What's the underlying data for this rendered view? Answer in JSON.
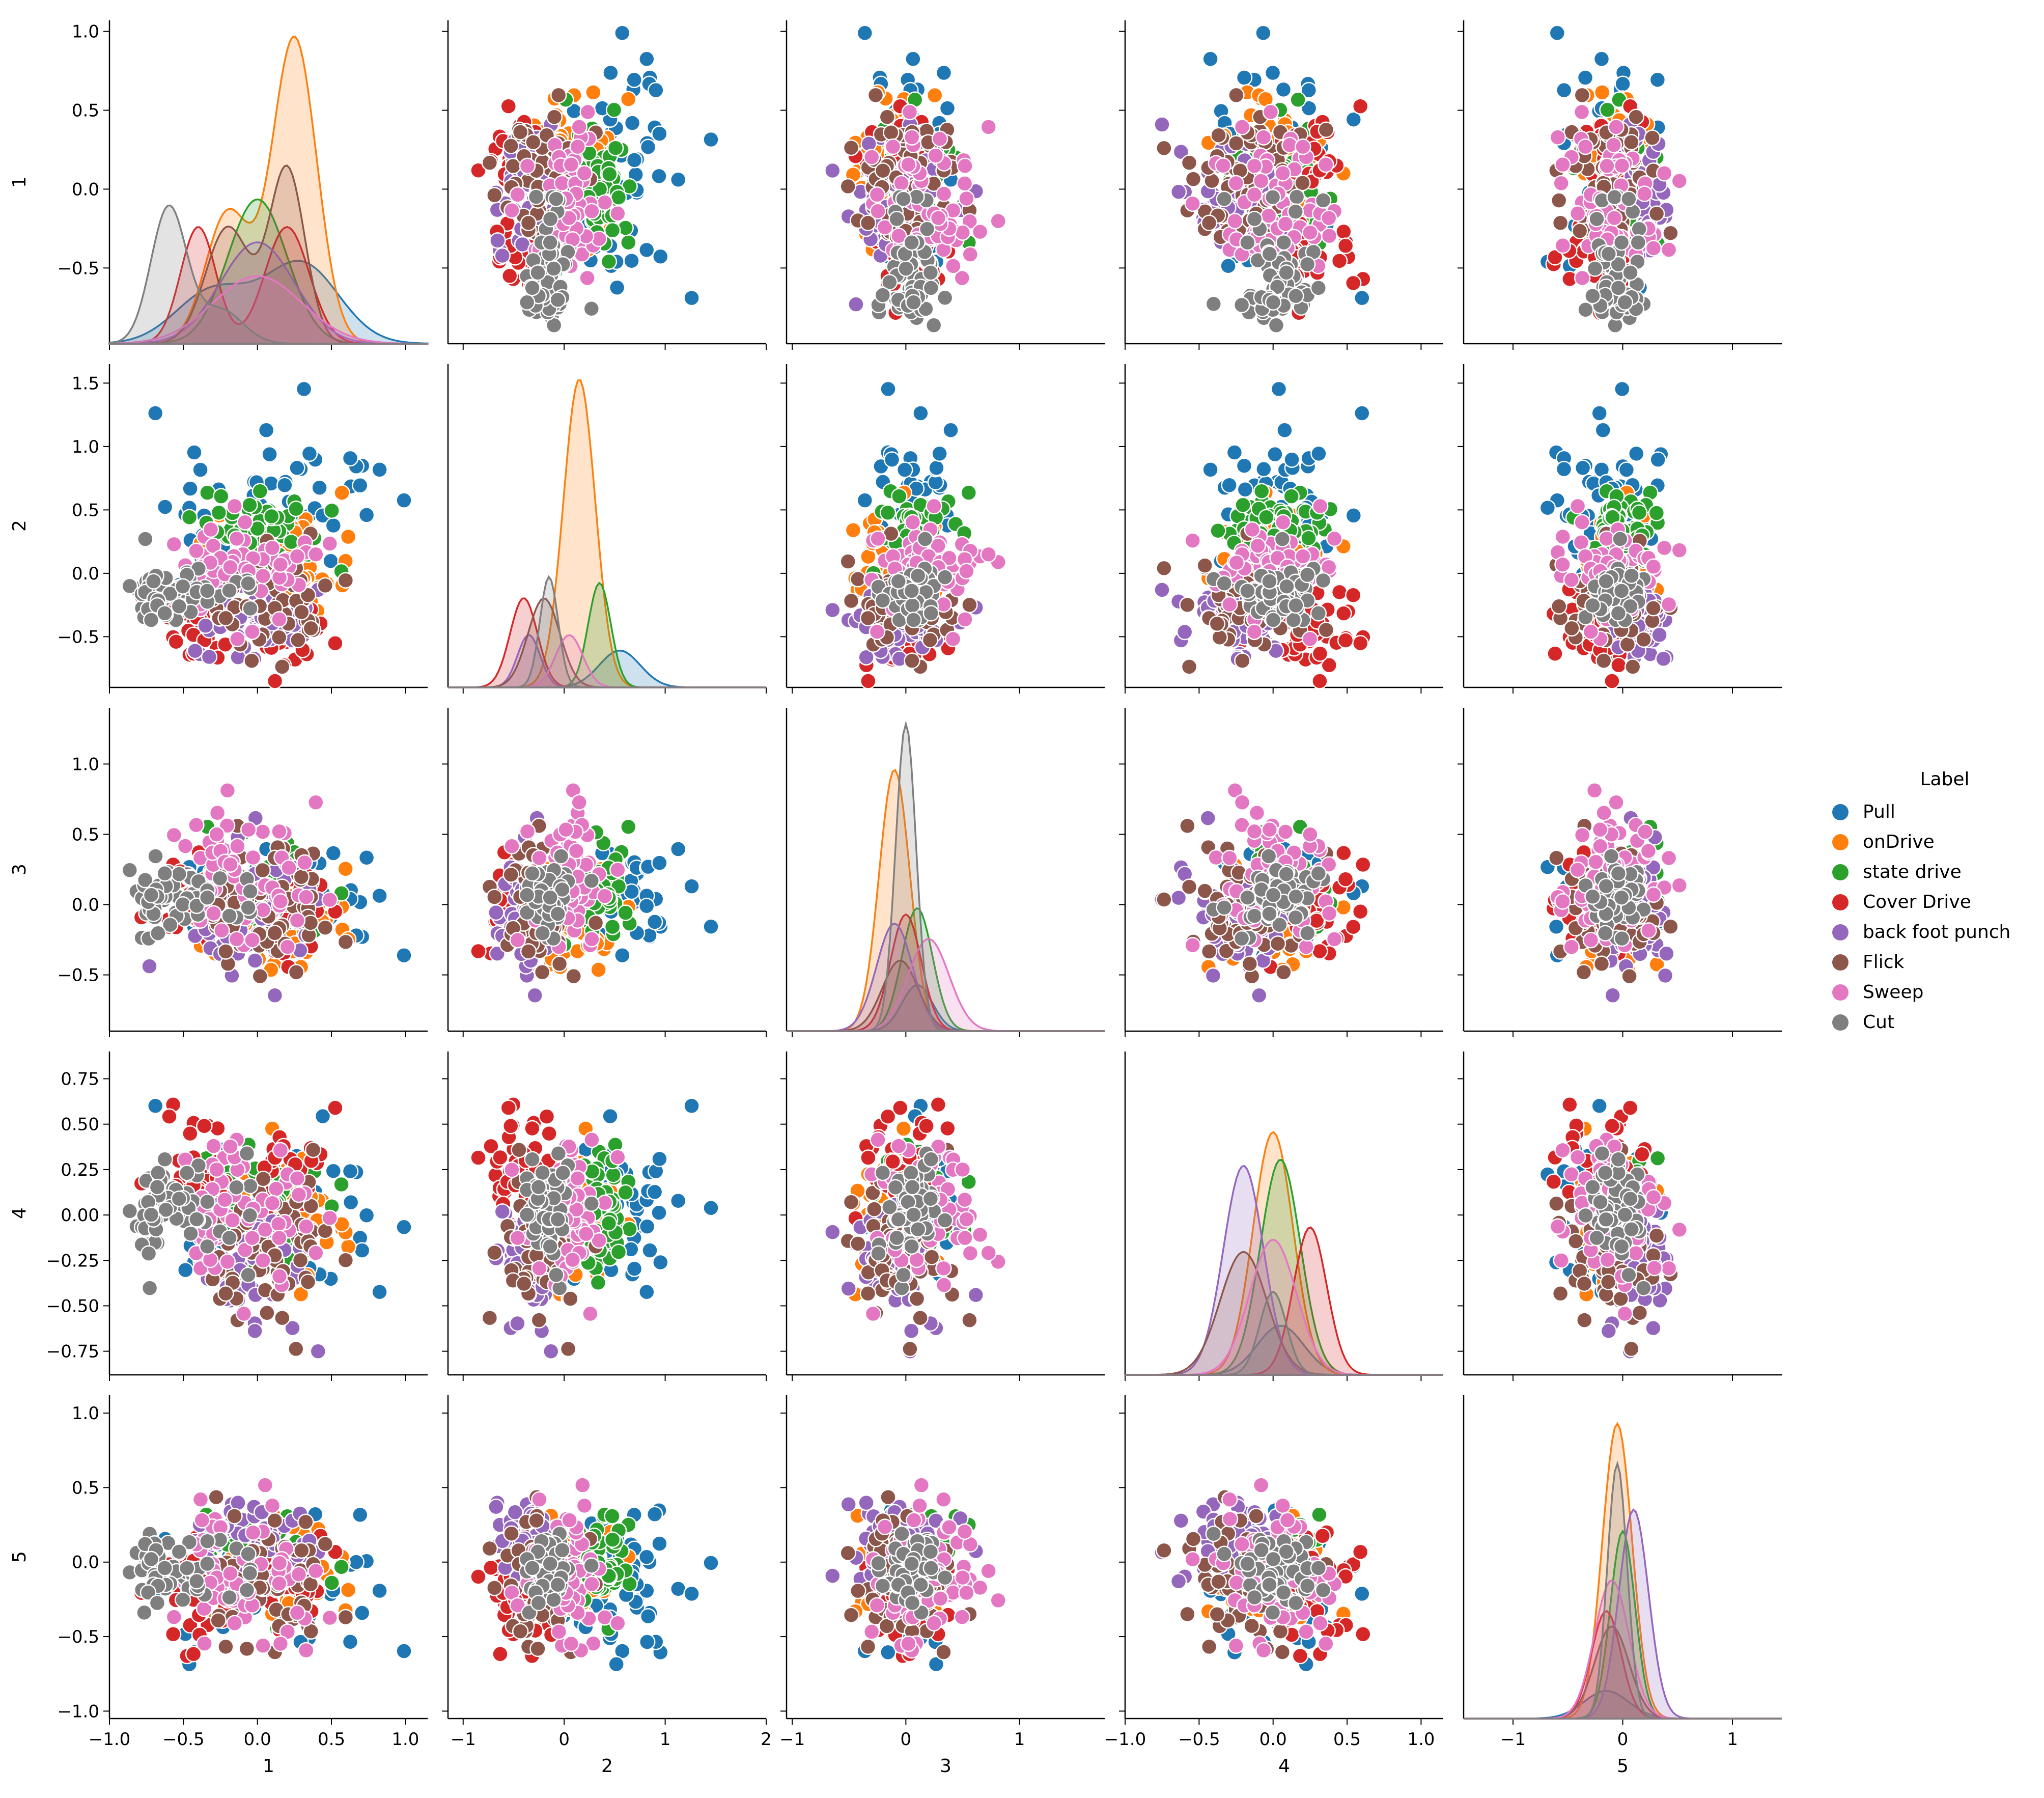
{
  "chart_data": {
    "type": "scatter",
    "subtype": "pairplot",
    "variables": [
      "1",
      "2",
      "3",
      "4",
      "5"
    ],
    "axes": {
      "1": {
        "label": "1",
        "range": [
          -1.0,
          1.15
        ],
        "xticks": [
          -1.0,
          -0.5,
          0.0,
          0.5,
          1.0
        ],
        "yrange": [
          -0.98,
          1.07
        ],
        "yticks": [
          -0.5,
          0.0,
          0.5,
          1.0
        ]
      },
      "2": {
        "label": "2",
        "range": [
          -1.15,
          2.0
        ],
        "xticks": [
          -1,
          0,
          1,
          2
        ],
        "yrange": [
          -0.9,
          1.65
        ],
        "yticks": [
          -0.5,
          0.0,
          0.5,
          1.0,
          1.5
        ]
      },
      "3": {
        "label": "3",
        "range": [
          -1.05,
          1.75
        ],
        "xticks": [
          -1,
          0,
          1
        ],
        "yrange": [
          -0.9,
          1.4
        ],
        "yticks": [
          -0.5,
          0.0,
          0.5,
          1.0
        ]
      },
      "4": {
        "label": "4",
        "range": [
          -1.0,
          1.15
        ],
        "xticks": [
          -1.0,
          -0.5,
          0.0,
          0.5,
          1.0
        ],
        "yrange": [
          -0.88,
          0.9
        ],
        "yticks": [
          -0.75,
          -0.5,
          -0.25,
          0.0,
          0.25,
          0.5,
          0.75
        ]
      },
      "5": {
        "label": "5",
        "range": [
          -1.45,
          1.45
        ],
        "xticks": [
          -1,
          0,
          1
        ],
        "yrange": [
          -1.05,
          1.12
        ],
        "yticks": [
          -1.0,
          -0.5,
          0.0,
          0.5,
          1.0
        ]
      }
    },
    "tick_labels": {
      "1": [
        "−1.0",
        "−0.5",
        "0.0",
        "0.5",
        "1.0"
      ],
      "2": [
        "−1",
        "0",
        "1",
        "2"
      ],
      "3": [
        "−1",
        "0",
        "1"
      ],
      "4": [
        "−1.0",
        "−0.5",
        "0.0",
        "0.5",
        "1.0"
      ],
      "5": [
        "−1",
        "0",
        "1"
      ]
    },
    "y_tick_labels": {
      "1": [
        "−0.5",
        "0.0",
        "0.5",
        "1.0"
      ],
      "2": [
        "−0.5",
        "0.0",
        "0.5",
        "1.0",
        "1.5"
      ],
      "3": [
        "−0.5",
        "0.0",
        "0.5",
        "1.0"
      ],
      "4": [
        "−0.75",
        "−0.50",
        "−0.25",
        "0.00",
        "0.25",
        "0.50",
        "0.75"
      ],
      "5": [
        "−1.0",
        "−0.5",
        "0.0",
        "0.5",
        "1.0"
      ]
    },
    "series": [
      {
        "name": "Pull",
        "color": "#1f77b4",
        "center": [
          0.05,
          0.55,
          0.1,
          0.05,
          -0.15
        ],
        "spread": [
          0.45,
          0.45,
          0.3,
          0.35,
          0.45
        ],
        "kde": [
          {
            "mu": -0.3,
            "sd": 0.25,
            "w": 0.4
          },
          {
            "mu": 0.3,
            "sd": 0.25,
            "w": 0.6
          }
        ],
        "kde_peak": [
          0.27,
          0.12,
          0.15,
          0.16,
          0.09
        ]
      },
      {
        "name": "onDrive",
        "color": "#ff7f0e",
        "center": [
          0.3,
          0.15,
          -0.1,
          0.0,
          -0.05
        ],
        "spread": [
          0.35,
          0.35,
          0.3,
          0.3,
          0.3
        ],
        "kde": [
          {
            "mu": -0.2,
            "sd": 0.15,
            "w": 0.3
          },
          {
            "mu": 0.25,
            "sd": 0.15,
            "w": 0.7
          }
        ],
        "kde_peak": [
          1.0,
          1.0,
          0.85,
          0.79,
          0.96
        ]
      },
      {
        "name": "state drive",
        "color": "#2ca02c",
        "center": [
          -0.1,
          0.35,
          0.1,
          0.05,
          0.0
        ],
        "spread": [
          0.3,
          0.25,
          0.3,
          0.3,
          0.25
        ],
        "kde": [
          {
            "mu": 0.0,
            "sd": 0.2,
            "w": 1.0
          }
        ],
        "kde_peak": [
          0.47,
          0.34,
          0.4,
          0.7,
          0.61
        ]
      },
      {
        "name": "Cover Drive",
        "color": "#d62728",
        "center": [
          -0.3,
          -0.4,
          0.0,
          0.25,
          -0.15
        ],
        "spread": [
          0.3,
          0.3,
          0.3,
          0.25,
          0.3
        ],
        "kde": [
          {
            "mu": -0.4,
            "sd": 0.12,
            "w": 0.5
          },
          {
            "mu": 0.2,
            "sd": 0.15,
            "w": 0.5
          }
        ],
        "kde_peak": [
          0.38,
          0.29,
          0.38,
          0.48,
          0.35
        ]
      },
      {
        "name": "back foot punch",
        "color": "#9467bd",
        "center": [
          0.0,
          -0.35,
          -0.1,
          -0.2,
          0.1
        ],
        "spread": [
          0.35,
          0.25,
          0.35,
          0.3,
          0.3
        ],
        "kde": [
          {
            "mu": 0.0,
            "sd": 0.25,
            "w": 1.0
          }
        ],
        "kde_peak": [
          0.33,
          0.17,
          0.35,
          0.68,
          0.68
        ]
      },
      {
        "name": "Flick",
        "color": "#8c564b",
        "center": [
          0.2,
          -0.2,
          -0.05,
          -0.2,
          -0.1
        ],
        "spread": [
          0.35,
          0.35,
          0.35,
          0.35,
          0.35
        ],
        "kde": [
          {
            "mu": -0.2,
            "sd": 0.15,
            "w": 0.4
          },
          {
            "mu": 0.2,
            "sd": 0.12,
            "w": 0.6
          }
        ],
        "kde_peak": [
          0.58,
          0.29,
          0.23,
          0.4,
          0.3
        ]
      },
      {
        "name": "Sweep",
        "color": "#e377c2",
        "center": [
          0.0,
          0.05,
          0.2,
          0.0,
          -0.1
        ],
        "spread": [
          0.4,
          0.3,
          0.4,
          0.35,
          0.35
        ],
        "kde": [
          {
            "mu": 0.0,
            "sd": 0.3,
            "w": 1.0
          }
        ],
        "kde_peak": [
          0.22,
          0.17,
          0.3,
          0.44,
          0.45
        ]
      },
      {
        "name": "Cut",
        "color": "#7f7f7f",
        "center": [
          -0.55,
          -0.15,
          0.0,
          0.0,
          -0.05
        ],
        "spread": [
          0.2,
          0.2,
          0.2,
          0.2,
          0.2
        ],
        "kde": [
          {
            "mu": -0.6,
            "sd": 0.12,
            "w": 0.8
          },
          {
            "mu": -0.25,
            "sd": 0.15,
            "w": 0.2
          }
        ],
        "kde_peak": [
          0.45,
          0.36,
          1.0,
          0.27,
          0.83
        ]
      }
    ],
    "legend": {
      "title": "Label",
      "position": "center-right"
    }
  }
}
